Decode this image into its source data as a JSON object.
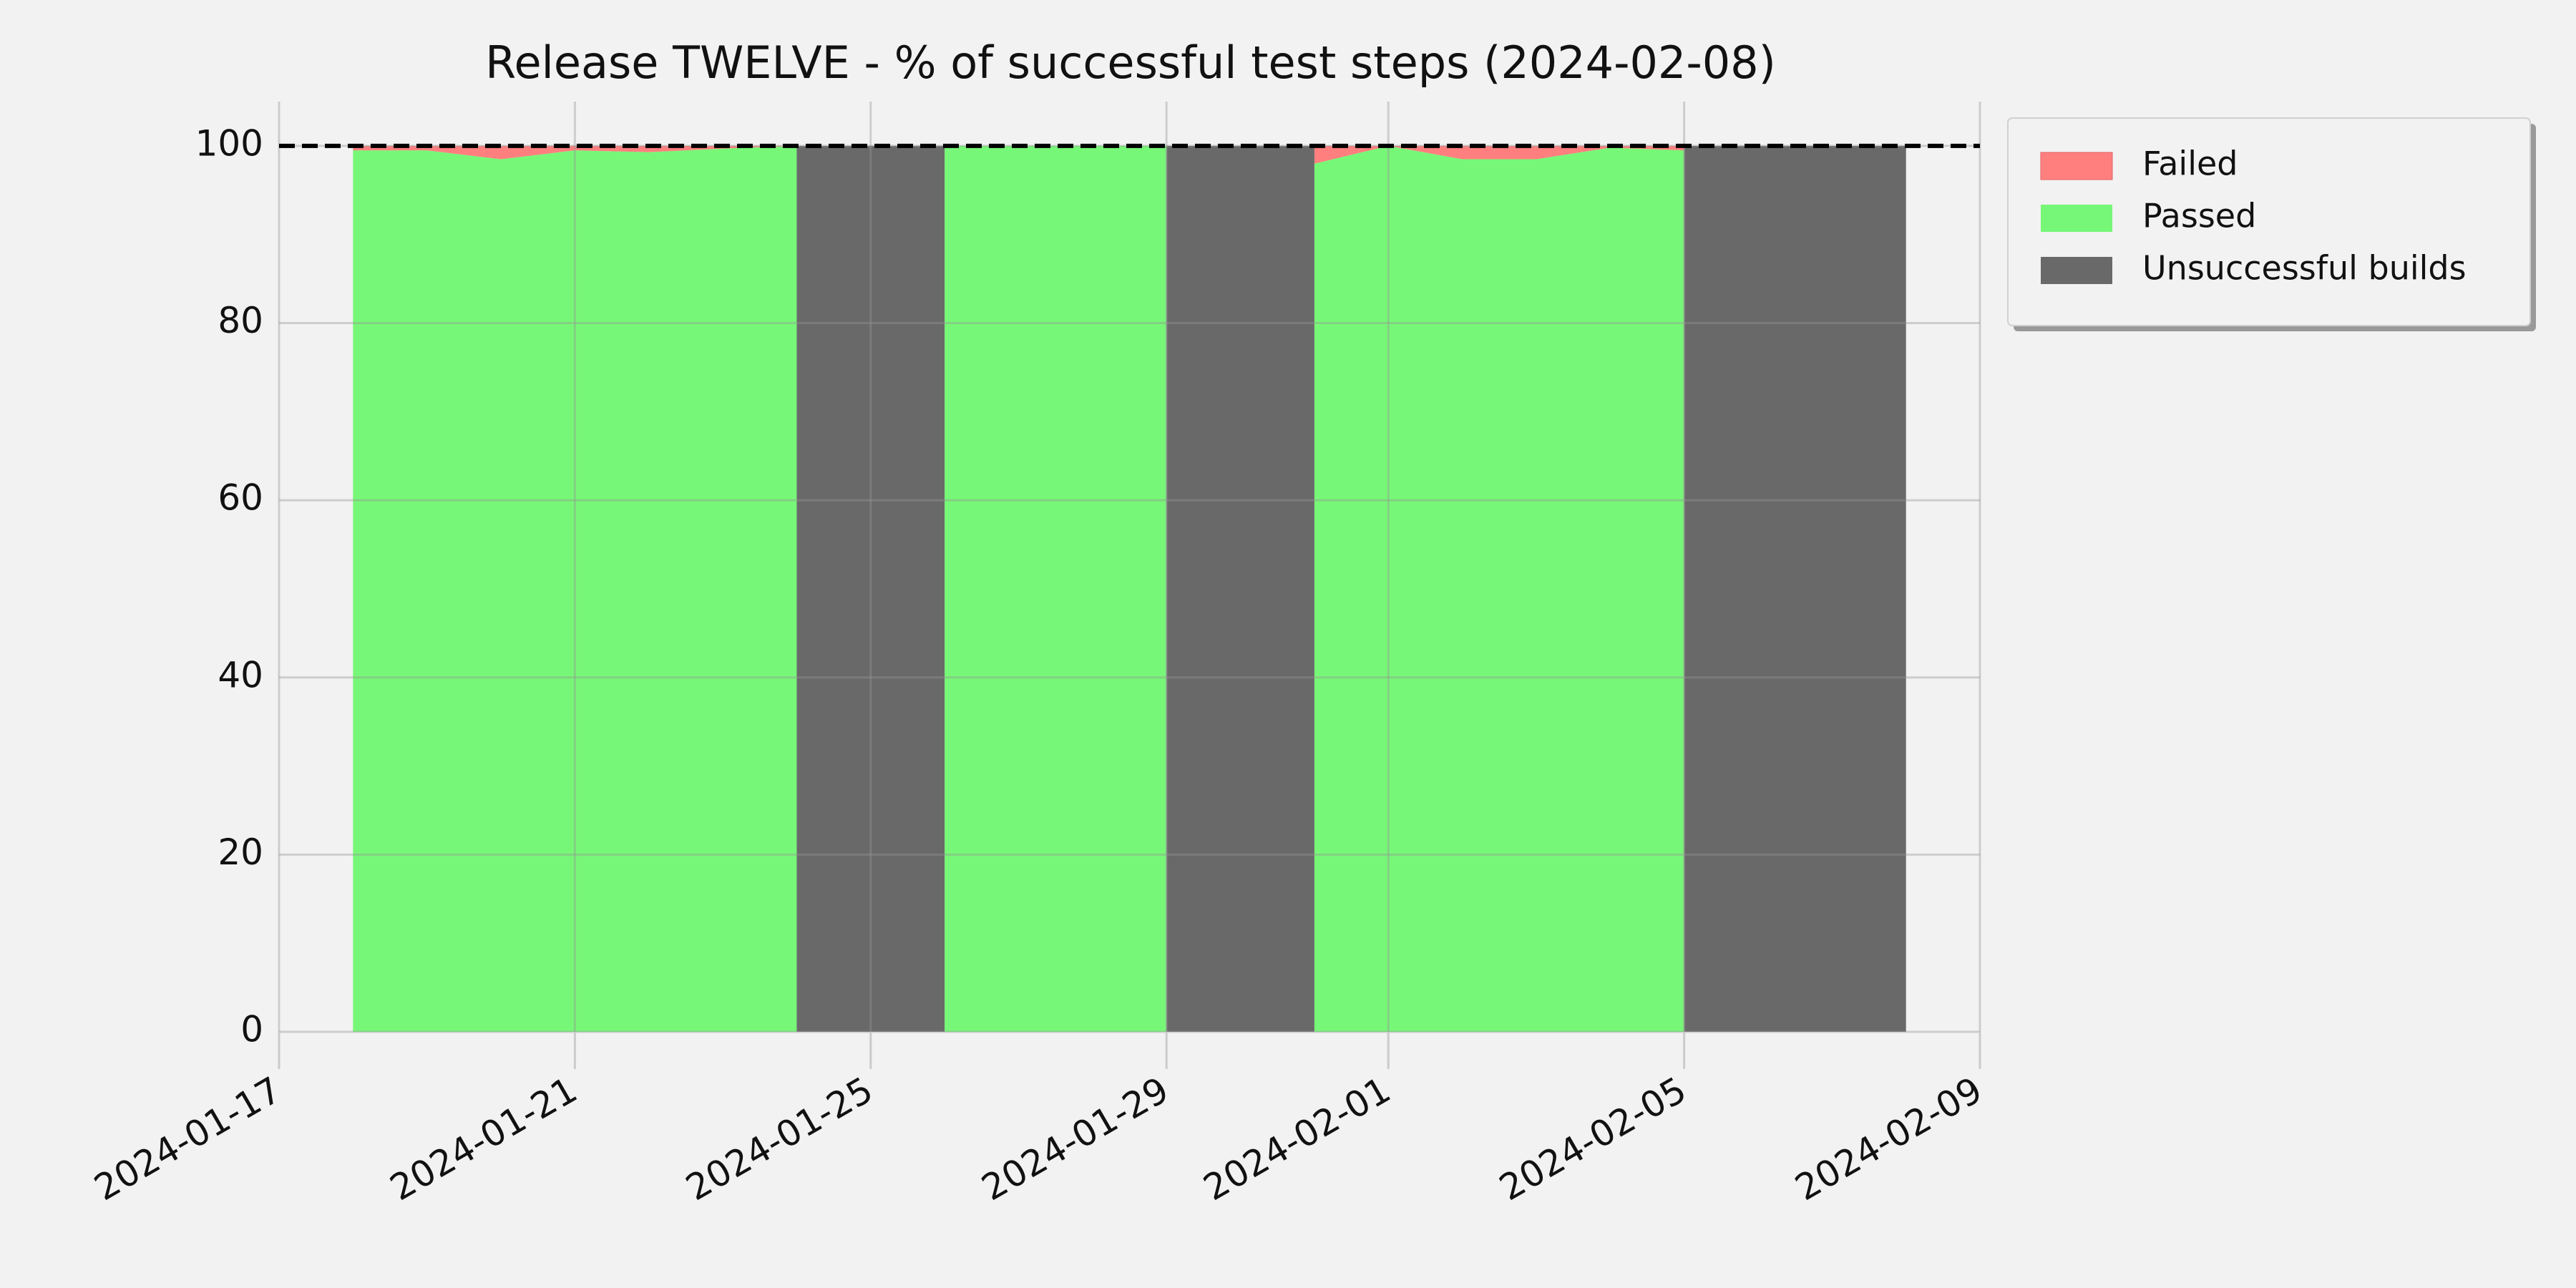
{
  "chart_data": {
    "type": "area",
    "title": "Release TWELVE - % of successful test steps (2024-02-08)",
    "x": [
      "2024-01-18",
      "2024-01-19",
      "2024-01-20",
      "2024-01-21",
      "2024-01-22",
      "2024-01-23",
      "2024-01-24",
      "2024-01-25",
      "2024-01-26",
      "2024-01-27",
      "2024-01-28",
      "2024-01-29",
      "2024-01-30",
      "2024-01-31",
      "2024-02-01",
      "2024-02-02",
      "2024-02-03",
      "2024-02-04",
      "2024-02-05",
      "2024-02-06",
      "2024-02-07",
      "2024-02-08"
    ],
    "series": [
      {
        "name": "Failed",
        "color": "#ff7f7f",
        "values": [
          0.5,
          0.5,
          1.5,
          0.5,
          0.7,
          0.3,
          0,
          null,
          0,
          0,
          0,
          0,
          null,
          2,
          0,
          1.5,
          1.5,
          0.2,
          0.5,
          null,
          null,
          null
        ]
      },
      {
        "name": "Passed",
        "color": "#77f777",
        "values": [
          99.5,
          99.5,
          98.5,
          99.5,
          99.3,
          99.7,
          100,
          null,
          100,
          100,
          100,
          100,
          null,
          98,
          100,
          98.5,
          98.5,
          99.8,
          99.5,
          null,
          null,
          null
        ]
      },
      {
        "name": "Unsuccessful builds",
        "color": "#696969",
        "values": [
          null,
          null,
          null,
          null,
          null,
          null,
          100,
          100,
          100,
          null,
          null,
          100,
          100,
          100,
          null,
          null,
          null,
          null,
          100,
          100,
          100,
          100
        ]
      }
    ],
    "stacked": [
      1,
      0
    ],
    "hline": 100,
    "xlim": [
      "2024-01-17",
      "2024-02-09"
    ],
    "xticks": [
      "2024-01-17",
      "2024-01-21",
      "2024-01-25",
      "2024-01-29",
      "2024-02-01",
      "2024-02-05",
      "2024-02-09"
    ],
    "ylim": [
      0,
      105
    ],
    "yticks": [
      0,
      20,
      40,
      60,
      80,
      100
    ],
    "grid": true,
    "legend": "outside upper right"
  }
}
